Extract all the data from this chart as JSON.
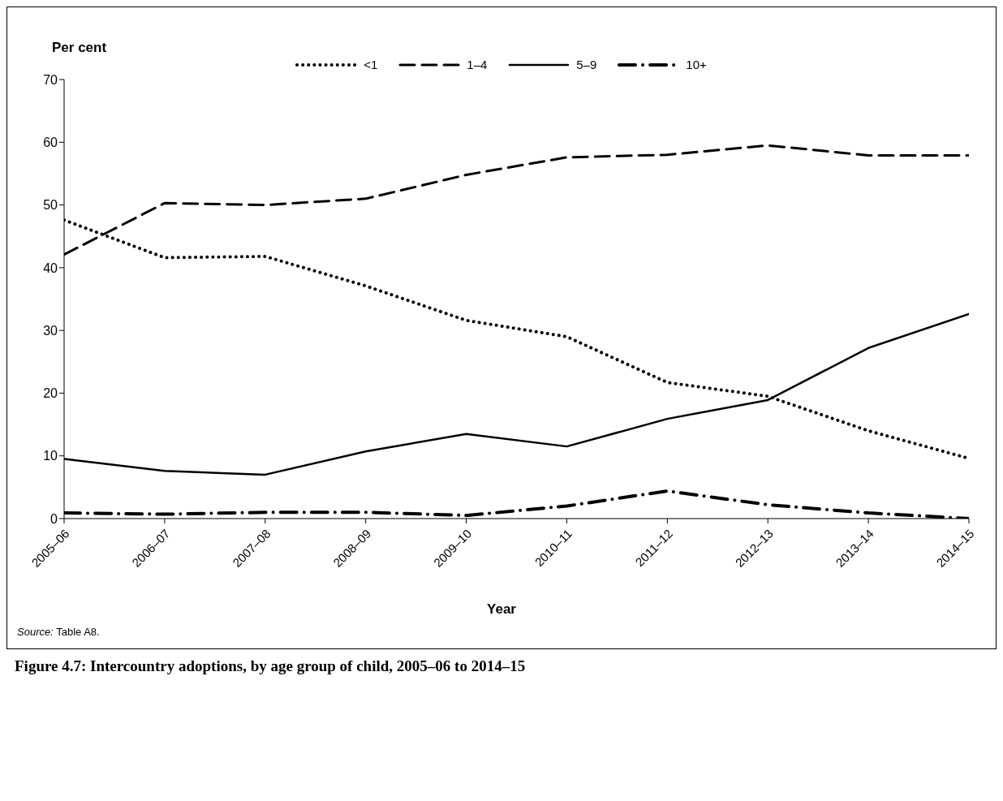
{
  "chart_data": {
    "type": "line",
    "title": "Figure 4.7: Intercountry adoptions, by age group of child, 2005–06 to 2014–15",
    "xlabel": "Year",
    "ylabel": "Per cent",
    "annotations": [
      "Source: Table A8."
    ],
    "categories": [
      "2005–06",
      "2006–07",
      "2007–08",
      "2008–09",
      "2009–10",
      "2010–11",
      "2011–12",
      "2012–13",
      "2013–14",
      "2014–15"
    ],
    "series": [
      {
        "name": "<1",
        "color": "#000000",
        "line_style": "dotted",
        "values": [
          47.6,
          41.6,
          41.8,
          37.1,
          31.6,
          29.0,
          21.7,
          19.5,
          14.0,
          9.6
        ]
      },
      {
        "name": "1–4",
        "color": "#000000",
        "line_style": "dashed",
        "values": [
          42.1,
          50.3,
          50.0,
          51.0,
          54.8,
          57.6,
          58.0,
          59.5,
          57.9,
          57.9
        ]
      },
      {
        "name": "5–9",
        "color": "#000000",
        "line_style": "solid",
        "values": [
          9.5,
          7.6,
          7.0,
          10.7,
          13.5,
          11.5,
          15.9,
          18.9,
          27.2,
          32.6
        ]
      },
      {
        "name": "10+",
        "color": "#000000",
        "line_style": "dashdot",
        "values": [
          0.9,
          0.7,
          1.0,
          1.0,
          0.5,
          2.0,
          4.4,
          2.2,
          0.9,
          0.0
        ]
      }
    ],
    "ylim": [
      0,
      70
    ],
    "yticks": [
      0,
      10,
      20,
      30,
      40,
      50,
      60,
      70
    ],
    "legend": "top",
    "marker": "none"
  }
}
